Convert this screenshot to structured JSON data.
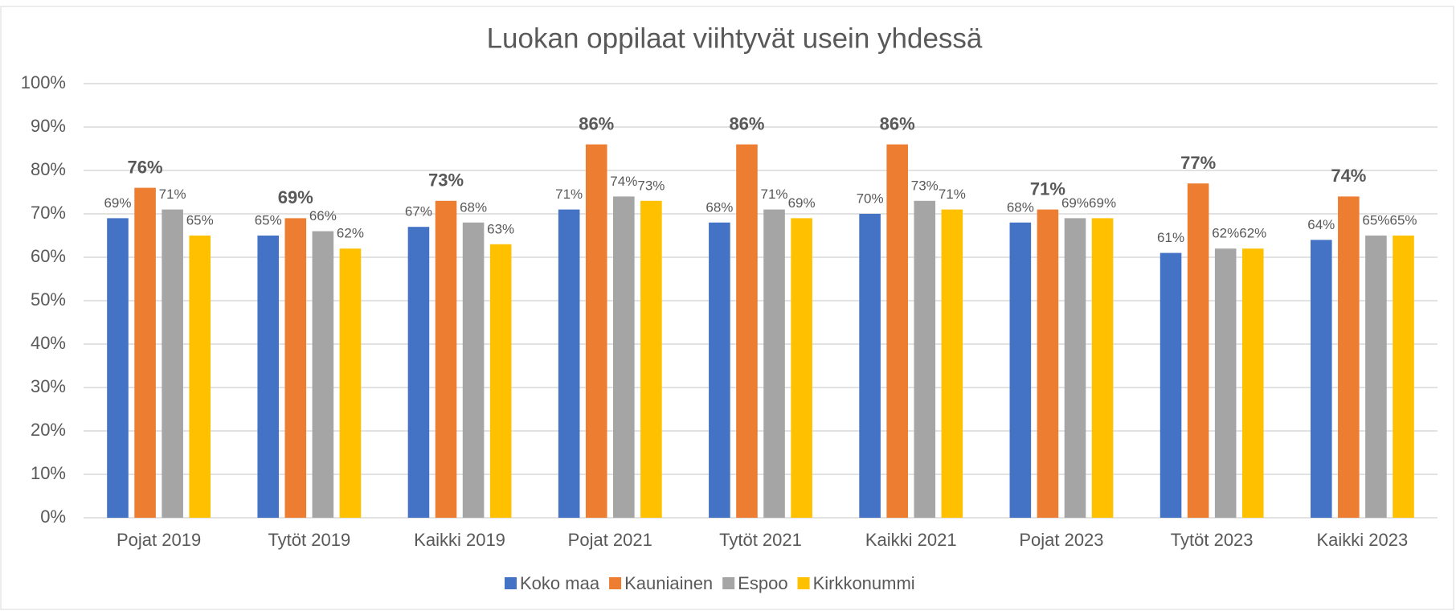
{
  "chart_data": {
    "type": "bar",
    "title": "Luokan oppilaat viihtyvät usein yhdessä",
    "categories": [
      "Pojat 2019",
      "Tytöt 2019",
      "Kaikki 2019",
      "Pojat 2021",
      "Tytöt 2021",
      "Kaikki 2021",
      "Pojat 2023",
      "Tytöt 2023",
      "Kaikki 2023"
    ],
    "series": [
      {
        "name": "Koko maa",
        "color": "#4472c4",
        "values": [
          69,
          65,
          67,
          71,
          68,
          70,
          68,
          61,
          64
        ],
        "value_labels": [
          "69%",
          "65%",
          "67%",
          "71%",
          "68%",
          "70%",
          "68%",
          "61%",
          "64%"
        ]
      },
      {
        "name": "Kauniainen",
        "color": "#ed7d31",
        "values": [
          76,
          69,
          73,
          86,
          86,
          86,
          71,
          77,
          74
        ],
        "value_labels": [
          "76%",
          "69%",
          "73%",
          "86%",
          "86%",
          "86%",
          "71%",
          "77%",
          "74%"
        ],
        "bold_labels": true
      },
      {
        "name": "Espoo",
        "color": "#a5a5a5",
        "values": [
          71,
          66,
          68,
          74,
          71,
          73,
          69,
          62,
          65
        ],
        "value_labels": [
          "71%",
          "66%",
          "68%",
          "74%",
          "71%",
          "73%",
          "69%",
          "62%",
          "65%"
        ]
      },
      {
        "name": "Kirkkonummi",
        "color": "#ffc000",
        "values": [
          65,
          62,
          63,
          73,
          69,
          71,
          69,
          62,
          65
        ],
        "value_labels": [
          "65%",
          "62%",
          "63%",
          "73%",
          "69%",
          "71%",
          "69%",
          "62%",
          "65%"
        ]
      }
    ],
    "ylim": [
      0,
      100
    ],
    "yticks": [
      {
        "value": 0,
        "label": "0%"
      },
      {
        "value": 10,
        "label": "10%"
      },
      {
        "value": 20,
        "label": "20%"
      },
      {
        "value": 30,
        "label": "30%"
      },
      {
        "value": 40,
        "label": "40%"
      },
      {
        "value": 50,
        "label": "50%"
      },
      {
        "value": 60,
        "label": "60%"
      },
      {
        "value": 70,
        "label": "70%"
      },
      {
        "value": 80,
        "label": "80%"
      },
      {
        "value": 90,
        "label": "90%"
      },
      {
        "value": 100,
        "label": "100%"
      }
    ],
    "grid": true,
    "legend": "bottom"
  }
}
